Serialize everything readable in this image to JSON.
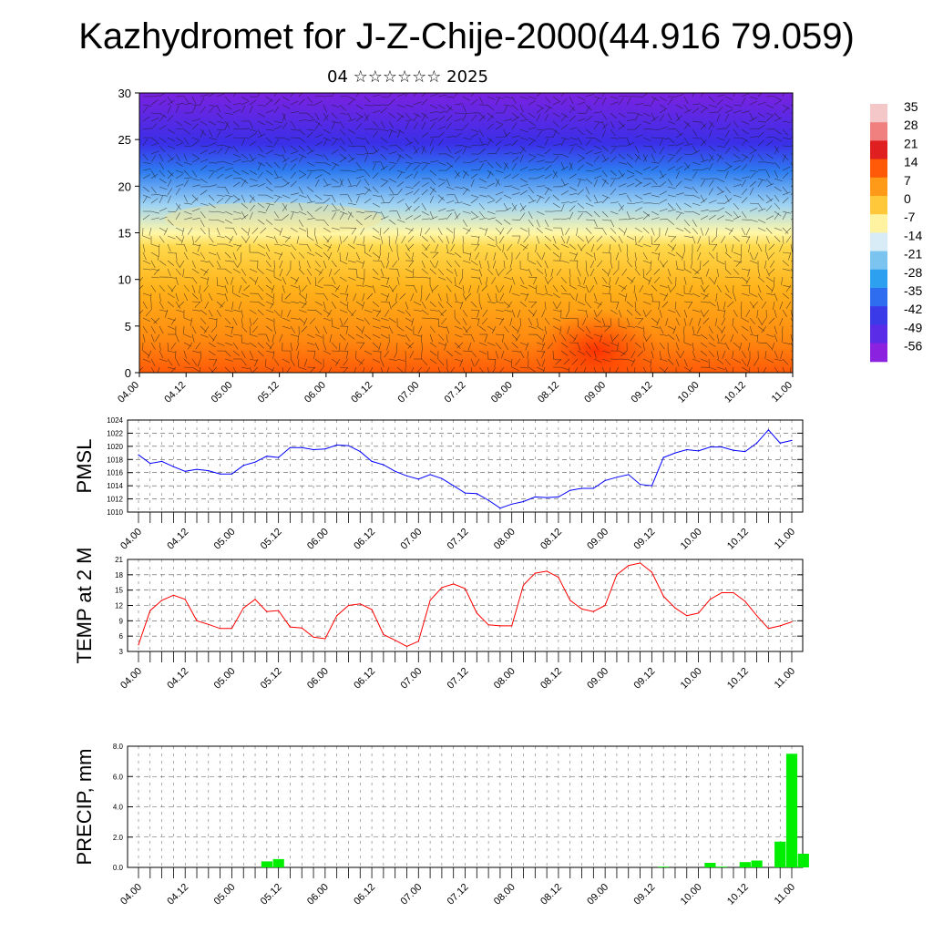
{
  "header": {
    "title": "Kazhydromet for J-Z-Chije-2000(44.916 79.059)",
    "subtitle": "04 ☆☆☆☆☆☆ 2025"
  },
  "time_labels": [
    "04.00",
    "04.12",
    "05.00",
    "05.12",
    "06.00",
    "06.12",
    "07.00",
    "07.12",
    "08.00",
    "08.12",
    "09.00",
    "09.12",
    "10.00",
    "10.12",
    "11.00"
  ],
  "chart_data": [
    {
      "type": "heatmap",
      "ylim": [
        0,
        30
      ],
      "y_ticks": [
        0,
        5,
        10,
        15,
        20,
        25,
        30
      ],
      "x_tick_labels": [
        "04.00",
        "04.12",
        "05.00",
        "05.12",
        "06.00",
        "06.12",
        "07.00",
        "07.12",
        "08.00",
        "08.12",
        "09.00",
        "09.12",
        "10.00",
        "10.12",
        "11.00"
      ],
      "colorbar_labels": [
        "35",
        "28",
        "21",
        "14",
        "7",
        "0",
        "-7",
        "-14",
        "-21",
        "-28",
        "-35",
        "-42",
        "-49",
        "-56"
      ]
    },
    {
      "type": "line",
      "ylabel": "PMSL",
      "ylim": [
        1010,
        1024
      ],
      "y_ticks": [
        "1010",
        "1012",
        "1014",
        "1016",
        "1018",
        "1020",
        "1022",
        "1024"
      ],
      "series_color": "#0000ff",
      "values": [
        1018.7,
        1017.4,
        1017.7,
        1016.9,
        1016.2,
        1016.5,
        1016.3,
        1015.8,
        1015.8,
        1017.1,
        1017.6,
        1018.5,
        1018.3,
        1019.8,
        1019.8,
        1019.5,
        1019.6,
        1020.2,
        1020.1,
        1019.2,
        1017.7,
        1017.2,
        1016.2,
        1015.5,
        1015.0,
        1015.7,
        1015.1,
        1014.0,
        1012.9,
        1012.8,
        1011.8,
        1010.6,
        1011.2,
        1011.6,
        1012.3,
        1012.2,
        1012.3,
        1013.3,
        1013.6,
        1013.6,
        1014.8,
        1015.3,
        1015.7,
        1014.2,
        1014.0,
        1018.3,
        1019.0,
        1019.5,
        1019.3,
        1019.9,
        1019.9,
        1019.4,
        1019.2,
        1020.5,
        1022.5,
        1020.5,
        1020.9
      ]
    },
    {
      "type": "line",
      "ylabel": "TEMP at 2 M",
      "ylim": [
        3,
        21
      ],
      "y_ticks": [
        "3",
        "6",
        "9",
        "12",
        "15",
        "18",
        "21"
      ],
      "series_color": "#ff0000",
      "values": [
        4.3,
        11.0,
        13.0,
        14.0,
        13.2,
        9.0,
        8.3,
        7.5,
        7.5,
        11.5,
        13.2,
        10.8,
        11.0,
        7.8,
        7.6,
        5.8,
        5.5,
        10.0,
        12.0,
        12.3,
        11.2,
        6.3,
        5.2,
        4.0,
        5.0,
        13.0,
        15.5,
        16.2,
        15.3,
        10.5,
        8.2,
        8.0,
        8.0,
        16.0,
        18.3,
        18.7,
        17.5,
        13.0,
        11.3,
        10.8,
        12.0,
        18.0,
        19.8,
        20.3,
        18.5,
        13.8,
        11.5,
        10.0,
        10.5,
        13.2,
        14.5,
        14.5,
        12.8,
        10.0,
        7.5,
        8.0,
        8.8
      ]
    },
    {
      "type": "bar",
      "ylabel": "PRECIP, mm",
      "ylim": [
        0,
        8
      ],
      "y_ticks": [
        "0.0",
        "2.0",
        "4.0",
        "6.0",
        "8.0"
      ],
      "bar_color": "#00ee00",
      "values": [
        0,
        0,
        0,
        0,
        0,
        0,
        0,
        0,
        0,
        0,
        0,
        0.4,
        0.55,
        0,
        0,
        0,
        0,
        0,
        0,
        0,
        0,
        0,
        0,
        0,
        0,
        0,
        0,
        0,
        0,
        0,
        0,
        0,
        0,
        0,
        0,
        0,
        0,
        0,
        0,
        0,
        0,
        0,
        0,
        0,
        0,
        0.05,
        0,
        0,
        0,
        0.3,
        0.05,
        0,
        0.35,
        0.45,
        0,
        1.7,
        7.5,
        0.9
      ]
    }
  ]
}
